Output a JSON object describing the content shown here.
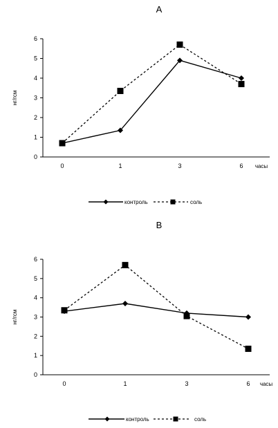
{
  "chart_data": [
    {
      "type": "line",
      "title": "A",
      "xlabel": "часы",
      "ylabel": "нг/гсм",
      "categories": [
        "0",
        "1",
        "3",
        "6"
      ],
      "ylim": [
        0,
        6
      ],
      "yticks": [
        "0",
        "1",
        "2",
        "3",
        "4",
        "5",
        "6"
      ],
      "grid": false,
      "legend_position": "bottom",
      "series": [
        {
          "name": "контроль",
          "values": [
            0.7,
            1.35,
            4.9,
            4.0
          ],
          "marker": "diamond",
          "dash": "solid",
          "color": "#000000"
        },
        {
          "name": "соль",
          "values": [
            0.7,
            3.35,
            5.7,
            3.7
          ],
          "marker": "square",
          "dash": "dashed",
          "color": "#000000"
        }
      ]
    },
    {
      "type": "line",
      "title": "B",
      "xlabel": "часы",
      "ylabel": "нг/гсм",
      "categories": [
        "0",
        "1",
        "3",
        "6"
      ],
      "ylim": [
        0,
        6
      ],
      "yticks": [
        "0",
        "1",
        "2",
        "3",
        "4",
        "5",
        "6"
      ],
      "grid": false,
      "legend_position": "bottom",
      "series": [
        {
          "name": "контроль",
          "values": [
            3.3,
            3.7,
            3.2,
            3.0
          ],
          "marker": "diamond",
          "dash": "solid",
          "color": "#000000"
        },
        {
          "name": "соль",
          "values": [
            3.35,
            5.7,
            3.05,
            1.35
          ],
          "marker": "square",
          "dash": "dashed",
          "color": "#000000"
        }
      ]
    }
  ]
}
